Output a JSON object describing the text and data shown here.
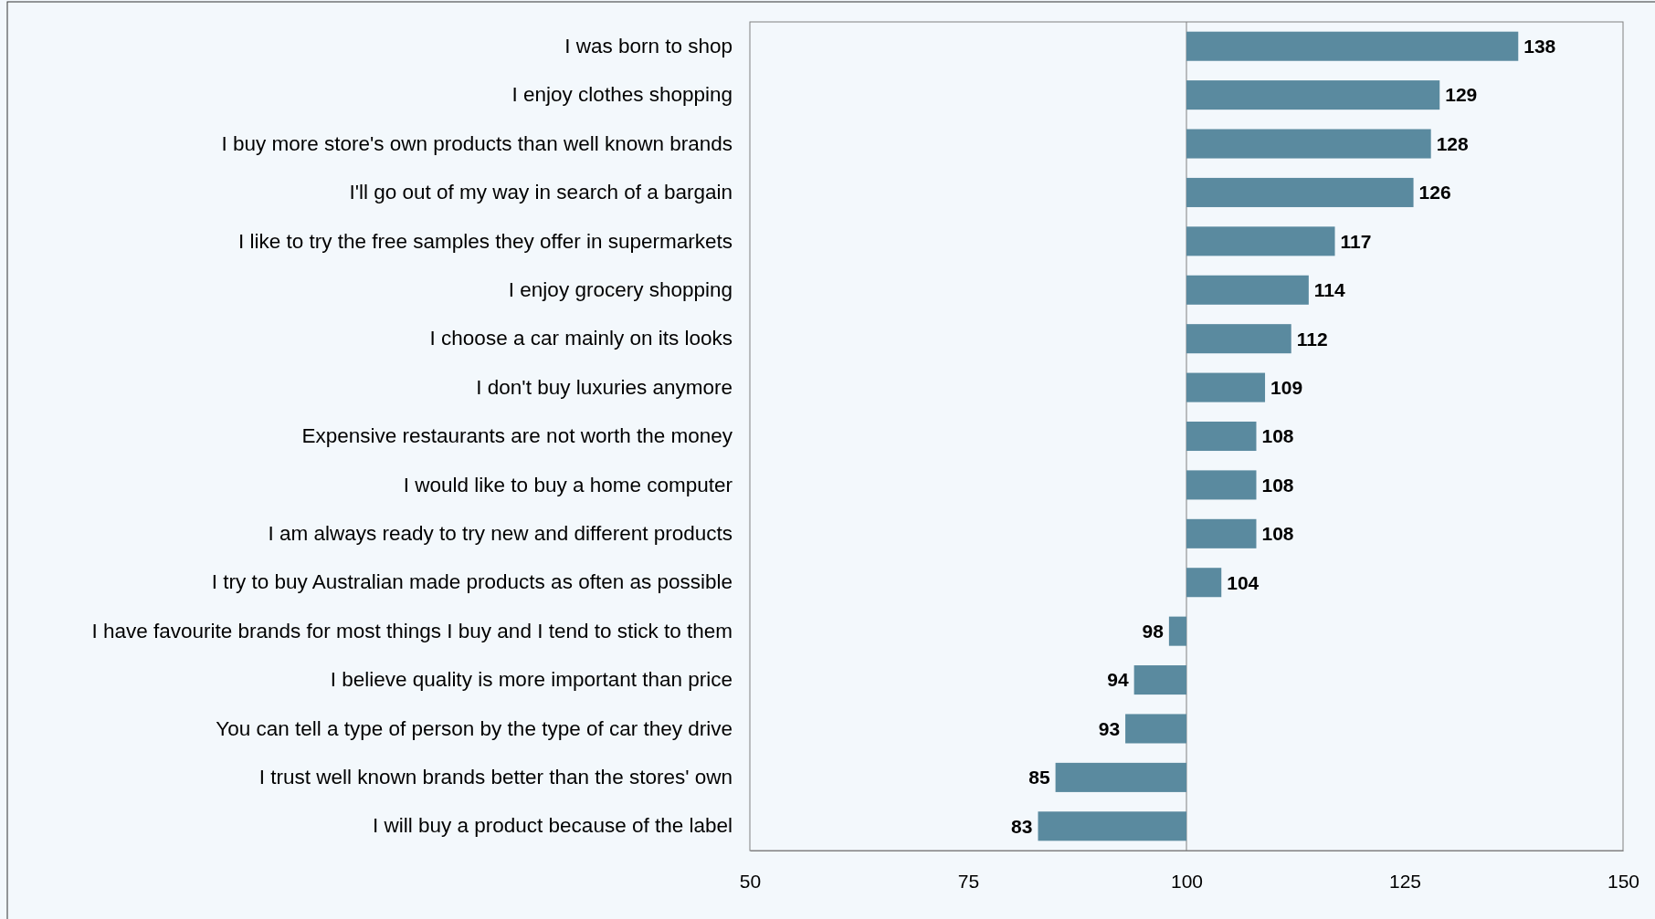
{
  "chart_data": {
    "type": "bar",
    "orientation": "horizontal",
    "categories": [
      "I was born to shop",
      "I enjoy clothes shopping",
      "I buy more store's own products than well known brands",
      "I'll go out of my way in search of a bargain",
      "I like to try the free samples they offer in supermarkets",
      "I enjoy grocery shopping",
      "I choose a car mainly on its looks",
      "I don't buy luxuries anymore",
      "Expensive restaurants are not worth the money",
      "I would like to buy a home computer",
      "I am always ready to try new and different products",
      "I try to buy Australian made products as often as possible",
      "I have favourite brands for most things I buy and I tend to stick to them",
      "I believe quality is more important than price",
      "You can tell a type of person by the type of car they drive",
      "I trust well known brands better than the stores' own",
      "I will buy a product because of the label"
    ],
    "base": [
      100,
      100,
      100,
      100,
      100,
      100,
      100,
      100,
      100,
      100,
      100,
      100,
      100,
      100,
      100,
      100,
      100
    ],
    "values": [
      38,
      29,
      28,
      26,
      17,
      14,
      12,
      9,
      8,
      8,
      8,
      4,
      -2,
      -6,
      -7,
      -15,
      -17
    ],
    "value_labels": [
      "138",
      "129",
      "128",
      "126",
      "117",
      "114",
      "112",
      "109",
      "108",
      "108",
      "108",
      "104",
      "98",
      "94",
      "93",
      "85",
      "83"
    ],
    "color": "#5a8a9f",
    "xlim": [
      50,
      150
    ],
    "xticks": [
      50,
      75,
      100,
      125,
      150
    ],
    "ref_lines": [
      {
        "axis": "x",
        "value": 100,
        "color": "#808080"
      }
    ],
    "grid": false
  }
}
